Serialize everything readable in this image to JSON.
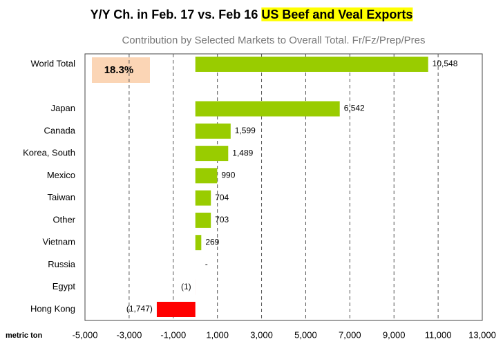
{
  "chart_data": {
    "type": "hbar",
    "title": "Y/Y Ch. in Feb. 17 vs. Feb 16 ",
    "title_highlight": "US Beef and Veal Exports",
    "subtitle": "Contribution by Selected Markets to Overall Total.  Fr/Fz/Prep/Pres",
    "annotation": "18.3%",
    "x_label": "metric ton",
    "categories": [
      "World Total",
      null,
      "Japan",
      "Canada",
      "Korea, South",
      "Mexico",
      "Taiwan",
      "Other",
      "Vietnam",
      "Russia",
      "Egypt",
      "Hong Kong"
    ],
    "values": [
      10548,
      null,
      6542,
      1599,
      1489,
      990,
      704,
      703,
      269,
      0,
      -1,
      -1747
    ],
    "value_labels": [
      "10,548",
      null,
      "6,542",
      "1,599",
      "1,489",
      "990",
      "704",
      "703",
      "269",
      "-",
      "(1)",
      "(1,747)"
    ],
    "color": "#99cc00",
    "negative_color": "#ff0000",
    "xlim": [
      -5000,
      13000
    ],
    "xticks": [
      {
        "value": -5000,
        "label": "-5,000"
      },
      {
        "value": -3000,
        "label": "-3,000"
      },
      {
        "value": -1000,
        "label": "-1,000"
      },
      {
        "value": 1000,
        "label": "1,000"
      },
      {
        "value": 3000,
        "label": "3,000"
      },
      {
        "value": 5000,
        "label": "5,000"
      },
      {
        "value": 7000,
        "label": "7,000"
      },
      {
        "value": 9000,
        "label": "9,000"
      },
      {
        "value": 11000,
        "label": "11,000"
      },
      {
        "value": 13000,
        "label": "13,000"
      }
    ],
    "grid": true
  }
}
